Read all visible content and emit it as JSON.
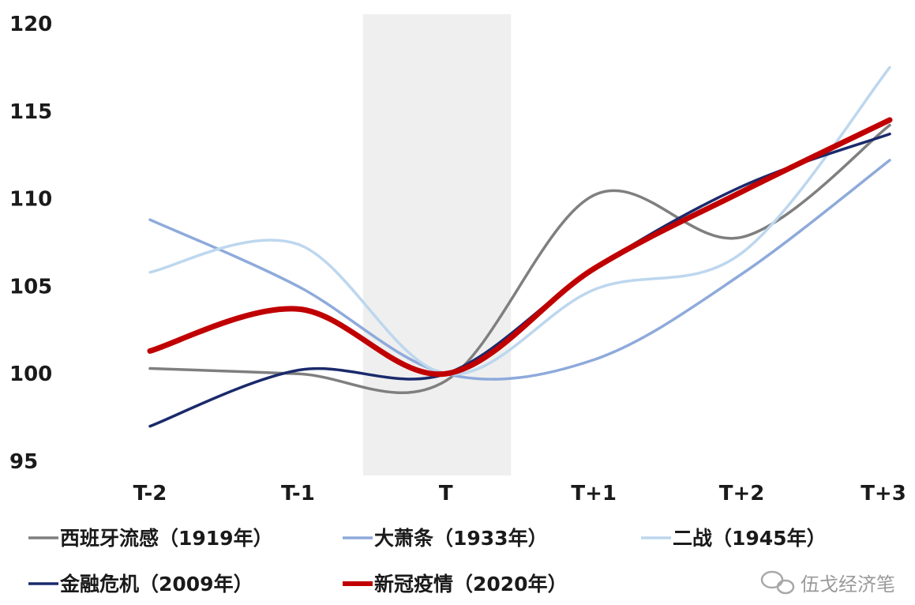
{
  "chart_data": {
    "type": "line",
    "categories": [
      "T-2",
      "T-1",
      "T",
      "T+1",
      "T+2",
      "T+3"
    ],
    "ylim": [
      95,
      120
    ],
    "yticks": [
      95,
      100,
      105,
      110,
      115,
      120
    ],
    "highlight_band": {
      "from": "T",
      "color": "#efefef"
    },
    "legend_position": "bottom",
    "series": [
      {
        "name": "西班牙流感（1919年）",
        "color": "#7f7f7f",
        "values": [
          100.3,
          100.0,
          99.6,
          110.2,
          107.8,
          114.2
        ]
      },
      {
        "name": "大萧条（1933年）",
        "color": "#8eaadb",
        "values": [
          108.8,
          105.0,
          100.0,
          100.8,
          105.7,
          112.2
        ]
      },
      {
        "name": "二战（1945年）",
        "color": "#bdd7ee",
        "values": [
          105.8,
          107.4,
          100.0,
          104.8,
          106.9,
          117.5
        ]
      },
      {
        "name": "金融危机（2009年）",
        "color": "#1a2a6c",
        "values": [
          97.0,
          100.2,
          100.0,
          106.0,
          110.7,
          113.7
        ]
      },
      {
        "name": "新冠疫情（2020年）",
        "color": "#c00000",
        "values": [
          101.3,
          103.7,
          100.0,
          106.0,
          110.4,
          114.5
        ]
      }
    ]
  },
  "watermark": "伍戈经济笔"
}
